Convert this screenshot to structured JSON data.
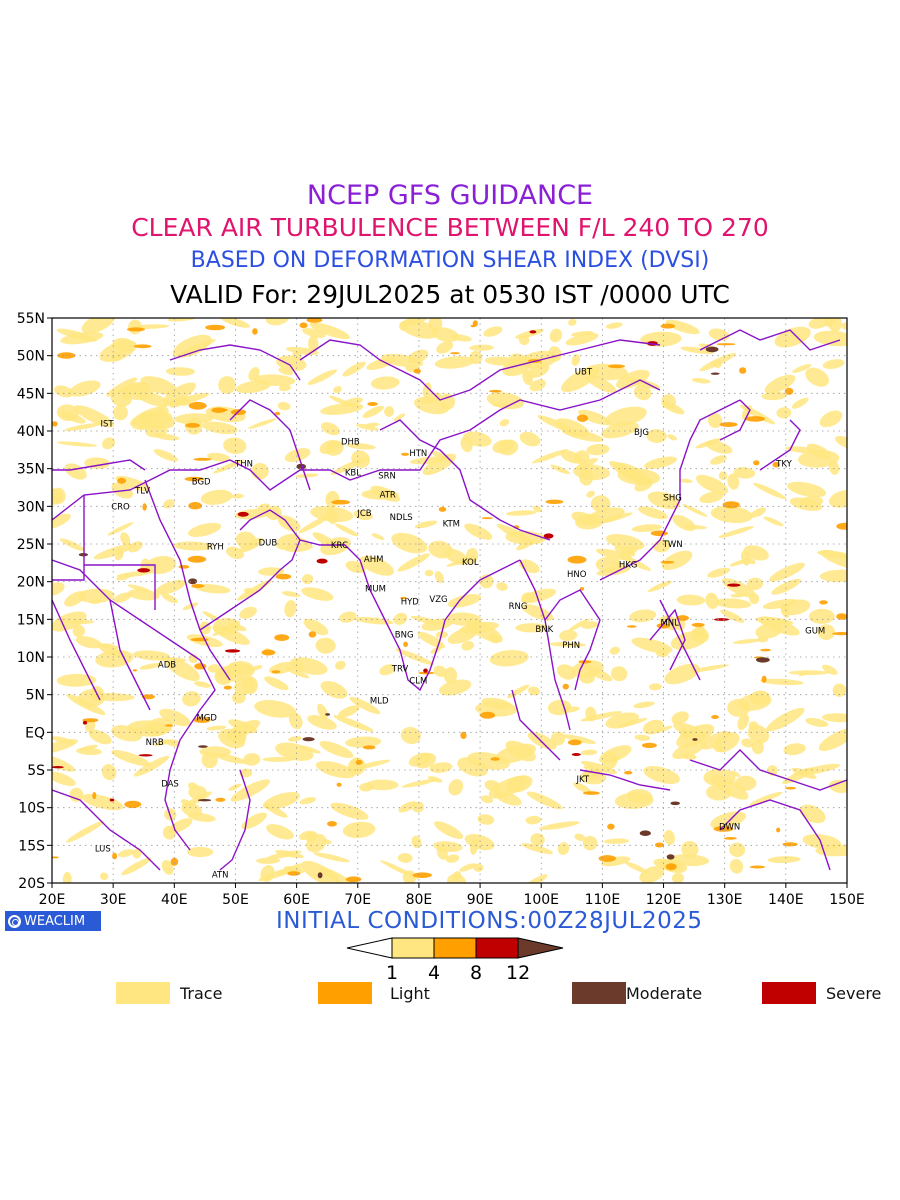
{
  "header": {
    "line1": "NCEP GFS GUIDANCE",
    "line2": "CLEAR AIR TURBULENCE BETWEEN F/L 240 TO 270",
    "line3": "BASED ON DEFORMATION SHEAR INDEX (DVSI)",
    "line4": "VALID For: 29JUL2025 at 0530 IST /0000 UTC"
  },
  "colors": {
    "line1": "#8a1fd6",
    "line2": "#e0146e",
    "line3": "#2b4fe0",
    "border": "#8a12c8",
    "trace": "#ffe680",
    "light": "#ffa000",
    "severe": "#c00000",
    "moderate": "#6b3a2a",
    "initial": "#2b5ad6"
  },
  "map": {
    "lon_ticks": [
      "20E",
      "30E",
      "40E",
      "50E",
      "60E",
      "70E",
      "80E",
      "90E",
      "100E",
      "110E",
      "120E",
      "130E",
      "140E",
      "150E"
    ],
    "lat_ticks": [
      "55N",
      "50N",
      "45N",
      "40N",
      "35N",
      "30N",
      "25N",
      "20N",
      "15N",
      "10N",
      "5N",
      "EQ",
      "5S",
      "10S",
      "15S",
      "20S"
    ],
    "stations": [
      {
        "code": "UBT",
        "lon": 106.9,
        "lat": 47.9
      },
      {
        "code": "IST",
        "lon": 29.0,
        "lat": 41.0
      },
      {
        "code": "DHB",
        "lon": 68.8,
        "lat": 38.6
      },
      {
        "code": "HTN",
        "lon": 79.9,
        "lat": 37.1
      },
      {
        "code": "BJG",
        "lon": 116.4,
        "lat": 39.9
      },
      {
        "code": "TKY",
        "lon": 139.7,
        "lat": 35.7
      },
      {
        "code": "THN",
        "lon": 51.4,
        "lat": 35.7
      },
      {
        "code": "KBL",
        "lon": 69.2,
        "lat": 34.5
      },
      {
        "code": "SRN",
        "lon": 74.8,
        "lat": 34.1
      },
      {
        "code": "TLV",
        "lon": 34.8,
        "lat": 32.1
      },
      {
        "code": "BGD",
        "lon": 44.4,
        "lat": 33.3
      },
      {
        "code": "ATR",
        "lon": 74.9,
        "lat": 31.6
      },
      {
        "code": "SHG",
        "lon": 121.5,
        "lat": 31.2
      },
      {
        "code": "CRO",
        "lon": 31.2,
        "lat": 30.0
      },
      {
        "code": "JCB",
        "lon": 71.1,
        "lat": 29.1
      },
      {
        "code": "NDLS",
        "lon": 77.1,
        "lat": 28.6
      },
      {
        "code": "KTM",
        "lon": 85.3,
        "lat": 27.7
      },
      {
        "code": "RYH",
        "lon": 46.7,
        "lat": 24.7
      },
      {
        "code": "DUB",
        "lon": 55.3,
        "lat": 25.2
      },
      {
        "code": "KRC",
        "lon": 67.0,
        "lat": 24.9
      },
      {
        "code": "TWN",
        "lon": 121.5,
        "lat": 25.0
      },
      {
        "code": "AHM",
        "lon": 72.6,
        "lat": 23.0
      },
      {
        "code": "KOL",
        "lon": 88.4,
        "lat": 22.6
      },
      {
        "code": "HKG",
        "lon": 114.2,
        "lat": 22.3
      },
      {
        "code": "HNO",
        "lon": 105.8,
        "lat": 21.0
      },
      {
        "code": "MUM",
        "lon": 72.9,
        "lat": 19.1
      },
      {
        "code": "HYD",
        "lon": 78.5,
        "lat": 17.4
      },
      {
        "code": "VZG",
        "lon": 83.2,
        "lat": 17.7
      },
      {
        "code": "RNG",
        "lon": 96.2,
        "lat": 16.8
      },
      {
        "code": "MNL",
        "lon": 121.0,
        "lat": 14.6
      },
      {
        "code": "GUM",
        "lon": 144.8,
        "lat": 13.5
      },
      {
        "code": "BNK",
        "lon": 100.5,
        "lat": 13.7
      },
      {
        "code": "BNG",
        "lon": 77.6,
        "lat": 13.0
      },
      {
        "code": "PHN",
        "lon": 104.9,
        "lat": 11.6
      },
      {
        "code": "ADB",
        "lon": 38.8,
        "lat": 9.0
      },
      {
        "code": "TRV",
        "lon": 76.9,
        "lat": 8.5
      },
      {
        "code": "CLM",
        "lon": 79.9,
        "lat": 6.9
      },
      {
        "code": "MLD",
        "lon": 73.5,
        "lat": 4.2
      },
      {
        "code": "MGD",
        "lon": 45.3,
        "lat": 2.0
      },
      {
        "code": "NRB",
        "lon": 36.8,
        "lat": -1.3
      },
      {
        "code": "DAS",
        "lon": 39.3,
        "lat": -6.8
      },
      {
        "code": "JKT",
        "lon": 106.8,
        "lat": -6.2
      },
      {
        "code": "DWN",
        "lon": 130.8,
        "lat": -12.5
      },
      {
        "code": "LUS",
        "lon": 28.3,
        "lat": -15.4
      },
      {
        "code": "ATN",
        "lon": 47.5,
        "lat": -18.9
      }
    ]
  },
  "logo": {
    "label": "WEACLIM"
  },
  "initial_conditions": "INITIAL CONDITIONS:00Z28JUL2025",
  "colorbar": {
    "ticks": [
      "1",
      "4",
      "8",
      "12"
    ]
  },
  "legend": [
    {
      "label": "Trace",
      "color_key": "trace"
    },
    {
      "label": "Light",
      "color_key": "light"
    },
    {
      "label": "Moderate",
      "color_key": "moderate"
    },
    {
      "label": "Severe",
      "color_key": "severe"
    }
  ]
}
